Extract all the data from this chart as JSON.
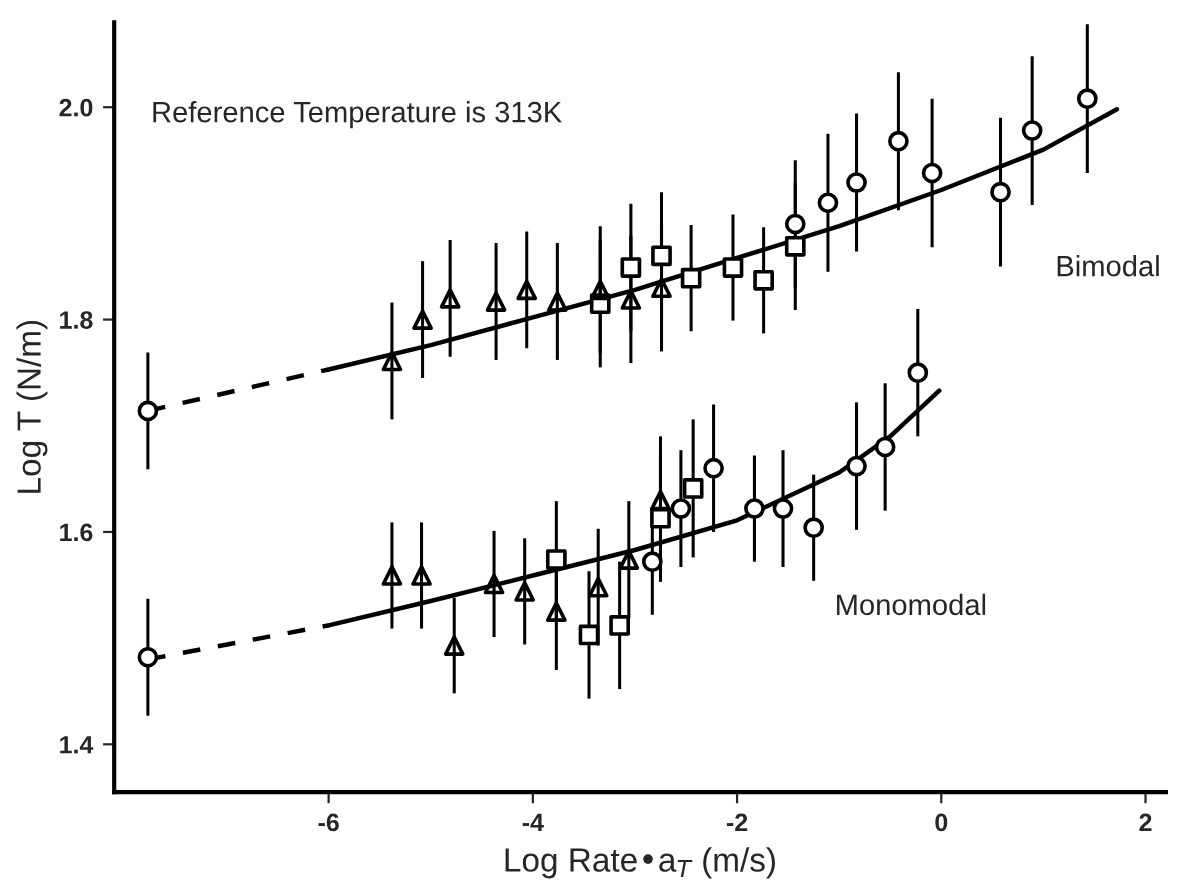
{
  "chart_data": {
    "type": "scatter",
    "xlabel": "Log Rate•a$_{T}$ (m/s)",
    "ylabel": "Log T (N/m)",
    "xlim": [
      -8.1,
      2.2
    ],
    "ylim": [
      1.355,
      2.08
    ],
    "xticks": [
      -6,
      -4,
      -2,
      0,
      2
    ],
    "yticks": [
      1.4,
      1.6,
      1.8,
      {
        "value": 2.0,
        "label": "2.0"
      }
    ],
    "grid": false,
    "series": [
      {
        "type": "line",
        "color": "#000000",
        "line_style": "dashed",
        "marker": "none",
        "x": [
          -7.77,
          -6.0
        ],
        "values": [
          1.714,
          1.753
        ]
      },
      {
        "type": "line",
        "color": "#000000",
        "line_style": "solid",
        "marker": "none",
        "x": [
          -6.0,
          -5.0,
          -4.0,
          -3.0,
          -2.0,
          -1.0,
          0.0,
          1.0,
          1.72
        ],
        "values": [
          1.753,
          1.776,
          1.802,
          1.828,
          1.858,
          1.888,
          1.922,
          1.96,
          1.998
        ]
      },
      {
        "type": "line",
        "color": "#000000",
        "line_style": "dashed",
        "marker": "none",
        "x": [
          -7.77,
          -6.0
        ],
        "values": [
          1.48,
          1.512
        ]
      },
      {
        "type": "line",
        "color": "#000000",
        "line_style": "solid",
        "marker": "none",
        "x": [
          -6.0,
          -5.0,
          -4.0,
          -3.0,
          -2.0,
          -1.0,
          -0.5,
          -0.02
        ],
        "values": [
          1.512,
          1.535,
          1.559,
          1.583,
          1.611,
          1.656,
          1.69,
          1.733
        ]
      },
      {
        "color": "#000000",
        "marker": "triangle",
        "x": [
          -5.38,
          -5.08,
          -4.81,
          -4.36,
          -4.06,
          -3.76,
          -3.34,
          -3.04,
          -2.74
        ],
        "values": [
          1.761,
          1.8,
          1.82,
          1.817,
          1.828,
          1.817,
          1.828,
          1.819,
          1.83
        ],
        "errors": [
          0.055,
          0.055,
          0.055,
          0.055,
          0.055,
          0.055,
          0.06,
          0.06,
          0.06
        ]
      },
      {
        "color": "#000000",
        "marker": "square",
        "x": [
          -3.34,
          -3.04,
          -2.74,
          -2.45,
          -2.04,
          -1.74,
          -1.43
        ],
        "values": [
          1.815,
          1.849,
          1.86,
          1.839,
          1.849,
          1.837,
          1.869
        ],
        "errors": [
          0.06,
          0.06,
          0.06,
          0.05,
          0.05,
          0.05,
          0.06
        ]
      },
      {
        "color": "#000000",
        "marker": "circle",
        "x": [
          -7.77,
          -1.43,
          -1.11,
          -0.83,
          -0.42,
          -0.09,
          0.58,
          0.89,
          1.43
        ],
        "values": [
          1.714,
          1.89,
          1.91,
          1.929,
          1.968,
          1.938,
          1.92,
          1.978,
          2.008
        ],
        "errors": [
          0.055,
          0.06,
          0.065,
          0.065,
          0.065,
          0.07,
          0.07,
          0.07,
          0.07
        ]
      },
      {
        "color": "#000000",
        "marker": "triangle",
        "x": [
          -5.38,
          -5.09,
          -4.77,
          -4.38,
          -4.08,
          -3.77,
          -3.36,
          -3.06,
          -2.75
        ],
        "values": [
          1.559,
          1.559,
          1.493,
          1.551,
          1.544,
          1.525,
          1.548,
          1.574,
          1.63
        ],
        "errors": [
          0.05,
          0.05,
          0.045,
          0.05,
          0.05,
          0.055,
          0.055,
          0.055,
          0.06
        ]
      },
      {
        "color": "#000000",
        "marker": "square",
        "x": [
          -3.77,
          -3.45,
          -3.15,
          -2.75,
          -2.43
        ],
        "values": [
          1.574,
          1.503,
          1.512,
          1.613,
          1.641
        ],
        "errors": [
          0.055,
          0.06,
          0.06,
          0.06,
          0.065
        ]
      },
      {
        "color": "#000000",
        "marker": "circle",
        "x": [
          -7.77,
          -2.83,
          -2.55,
          -2.23,
          -1.83,
          -1.55,
          -1.25,
          -0.83,
          -0.55,
          -0.23
        ],
        "values": [
          1.482,
          1.572,
          1.622,
          1.66,
          1.622,
          1.622,
          1.604,
          1.662,
          1.68,
          1.75
        ],
        "errors": [
          0.055,
          0.05,
          0.055,
          0.06,
          0.05,
          0.055,
          0.05,
          0.06,
          0.06,
          0.06
        ]
      }
    ],
    "annotations": [
      "Reference Temperature is 313K",
      "Bimodal",
      "Monomodal"
    ]
  }
}
